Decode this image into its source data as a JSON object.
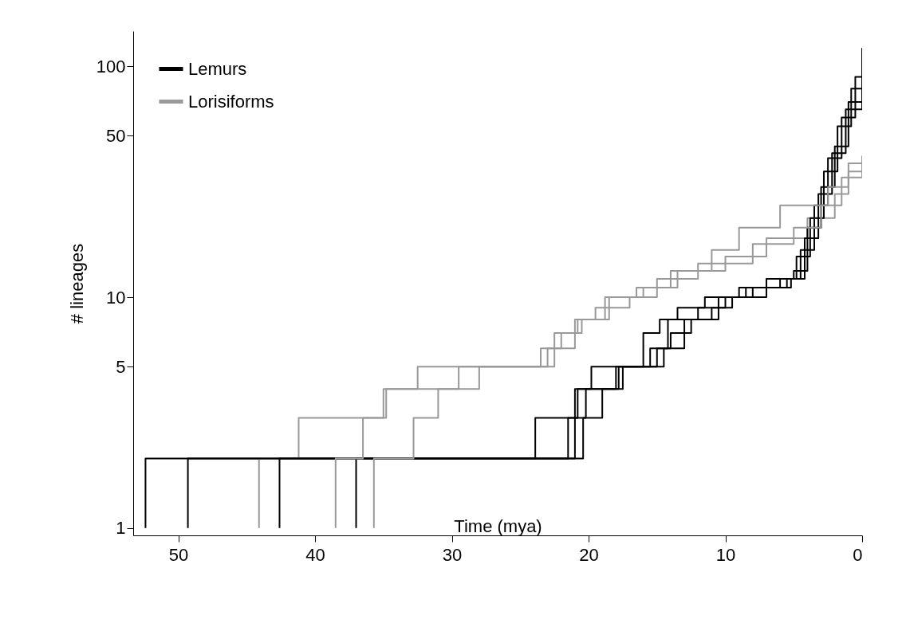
{
  "chart_data": {
    "type": "step",
    "xlabel": "Time (mya)",
    "ylabel": "# lineages",
    "log": "y",
    "legend": "top left",
    "xlim": [
      53.3,
      0
    ],
    "xticks": [
      50,
      40,
      30,
      20,
      10,
      0
    ],
    "ylim": [
      0.93,
      142
    ],
    "yticks": [
      1,
      5,
      10,
      50,
      100
    ],
    "series": [
      {
        "name": "Lemurs",
        "color": "#000000",
        "x": [
          52.4,
          52.4,
          23.9,
          21.0,
          19.8,
          15.0,
          14.0,
          12.5,
          10.5,
          8.0,
          5.5,
          4.5,
          3.5,
          2.5,
          1.5,
          0.5,
          0
        ],
        "values": [
          1,
          2,
          3,
          4,
          5,
          6,
          7,
          8,
          10,
          11,
          12,
          16,
          25,
          40,
          60,
          90,
          120
        ]
      },
      {
        "color": "#000000",
        "x": [
          49.3,
          49.3,
          20.4,
          19.0,
          17.5,
          14.5,
          13.0,
          11.0,
          9.5,
          7.0,
          5.0,
          4.0,
          3.0,
          2.0,
          1.0,
          0
        ],
        "values": [
          1,
          2,
          3,
          4,
          5,
          6,
          8,
          9,
          10,
          12,
          13,
          20,
          30,
          45,
          70,
          110
        ]
      },
      {
        "color": "#000000",
        "x": [
          42.6,
          42.6,
          21.5,
          20.8,
          18.0,
          16.0,
          14.8,
          13.5,
          11.5,
          9.0,
          6.0,
          4.8,
          3.8,
          2.8,
          1.8,
          0.8,
          0
        ],
        "values": [
          1,
          2,
          3,
          4,
          5,
          7,
          8,
          9,
          10,
          11,
          12,
          15,
          22,
          35,
          55,
          80,
          115
        ]
      },
      {
        "color": "#000000",
        "x": [
          37.0,
          37.0,
          21.0,
          20.2,
          17.8,
          15.5,
          14.2,
          12.0,
          10.0,
          8.5,
          5.2,
          4.2,
          3.2,
          2.2,
          1.2,
          0
        ],
        "values": [
          1,
          2,
          3,
          4,
          5,
          6,
          8,
          9,
          10,
          11,
          12,
          18,
          28,
          42,
          65,
          105
        ]
      },
      {
        "name": "Lorisiforms",
        "color": "#999999",
        "x": [
          44.1,
          44.1,
          41.2,
          34.8,
          32.5,
          23.5,
          22.0,
          20.5,
          18.5,
          16.0,
          13.5,
          10.0,
          7.0,
          4.0,
          2.0,
          1.0,
          0
        ],
        "values": [
          1,
          2,
          3,
          4,
          5,
          6,
          7,
          8,
          10,
          11,
          13,
          15,
          18,
          22,
          28,
          35,
          40
        ]
      },
      {
        "color": "#999999",
        "x": [
          38.5,
          38.5,
          36.5,
          35.0,
          28.0,
          23.0,
          21.0,
          19.5,
          17.0,
          15.0,
          12.0,
          8.0,
          5.0,
          3.0,
          1.5,
          0
        ],
        "values": [
          1,
          2,
          3,
          4,
          5,
          6,
          8,
          9,
          10,
          12,
          14,
          17,
          20,
          25,
          33,
          40
        ]
      },
      {
        "color": "#999999",
        "x": [
          35.7,
          35.7,
          32.8,
          31.0,
          29.5,
          22.5,
          20.8,
          18.8,
          16.5,
          14.0,
          11.0,
          9.0,
          6.0,
          2.5,
          1.0,
          0
        ],
        "values": [
          1,
          2,
          3,
          4,
          5,
          7,
          8,
          10,
          11,
          13,
          16,
          20,
          25,
          30,
          38,
          41
        ]
      }
    ]
  }
}
